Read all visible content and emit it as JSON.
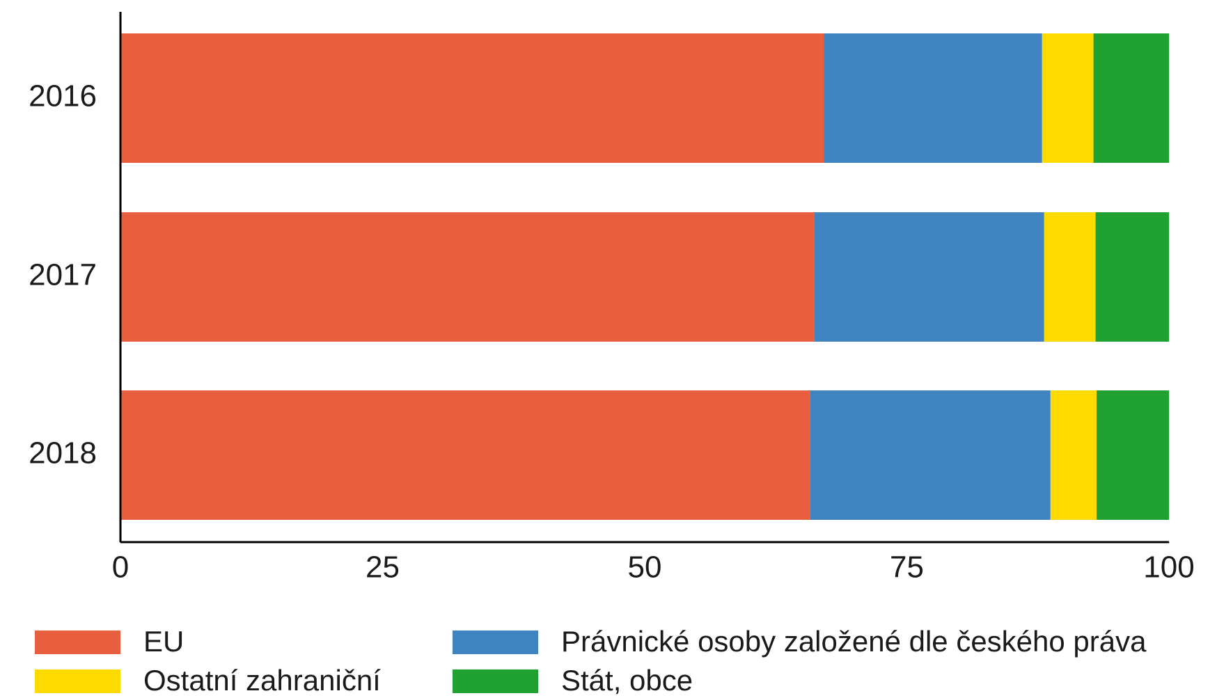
{
  "chart_data": {
    "type": "stacked_barh",
    "categories": [
      "2016",
      "2017",
      "2018"
    ],
    "series": [
      {
        "name": "EU",
        "color": "#e85f40",
        "values": [
          67.1,
          66.2,
          65.8
        ]
      },
      {
        "name": "Právnické osoby založené dle českého práva",
        "color": "#3f84c1",
        "values": [
          20.8,
          21.9,
          22.9
        ]
      },
      {
        "name": "Ostatní zahraniční",
        "color": "#fedb00",
        "values": [
          4.9,
          4.9,
          4.4
        ]
      },
      {
        "name": "Stát, obce",
        "color": "#21a132",
        "values": [
          7.2,
          7.0,
          6.9
        ]
      }
    ],
    "xlim": [
      0,
      100
    ],
    "xticks": [
      0,
      25,
      50,
      75,
      100
    ],
    "grid": false,
    "legend": "bottom"
  }
}
